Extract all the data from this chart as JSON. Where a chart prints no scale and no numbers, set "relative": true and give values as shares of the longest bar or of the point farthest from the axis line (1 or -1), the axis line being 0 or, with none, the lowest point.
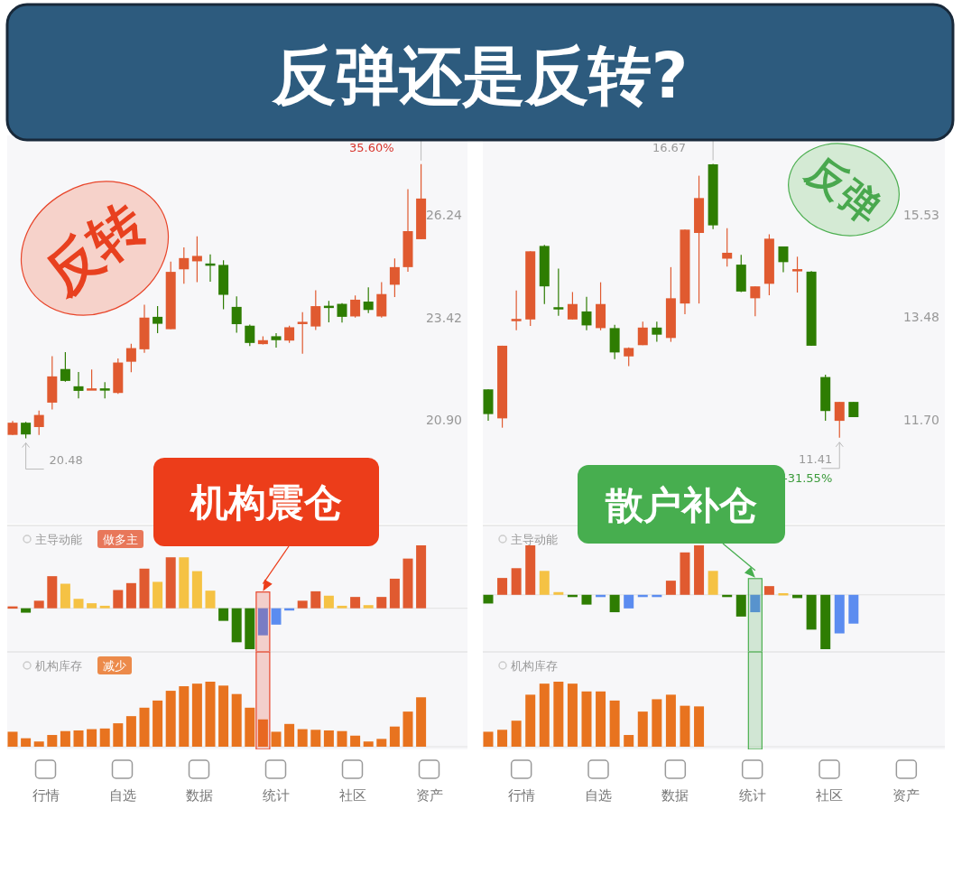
{
  "chart_data": [
    {
      "type": "other",
      "title": "反弹还是反转?"
    },
    {
      "type": "candlestick",
      "log": true,
      "ylim": [
        18.63,
        28.67
      ],
      "yticks": [
        {
          "value": 20.9,
          "label": "20.90"
        },
        {
          "value": 23.42,
          "label": "23.42"
        },
        {
          "value": 26.24,
          "label": "26.24"
        }
      ],
      "tick_labels": "y",
      "categories": [
        null,
        null,
        null,
        null,
        null,
        null,
        null,
        null,
        null,
        null,
        null,
        null,
        null,
        null,
        null,
        null,
        null,
        null,
        null,
        null,
        null,
        null,
        null,
        null,
        null,
        null,
        null,
        null,
        null,
        null,
        null,
        null
      ],
      "ohlc": [
        [
          20.56,
          20.88,
          20.56,
          20.84
        ],
        [
          20.84,
          20.86,
          20.48,
          20.57
        ],
        [
          20.74,
          21.12,
          20.56,
          21.02
        ],
        [
          21.31,
          22.44,
          21.15,
          21.94
        ],
        [
          22.12,
          22.54,
          21.81,
          21.83
        ],
        [
          21.7,
          22.05,
          21.41,
          21.59
        ],
        [
          21.63,
          22.11,
          21.62,
          21.65
        ],
        [
          21.65,
          21.8,
          21.41,
          21.62
        ],
        [
          21.54,
          22.38,
          21.52,
          22.28
        ],
        [
          22.3,
          22.75,
          22.04,
          22.64
        ],
        [
          22.61,
          23.76,
          22.52,
          23.42
        ],
        [
          23.44,
          23.72,
          23.02,
          23.26
        ],
        [
          23.12,
          24.92,
          23.12,
          24.64
        ],
        [
          24.71,
          25.32,
          24.32,
          25.02
        ],
        [
          24.93,
          25.63,
          24.36,
          25.08
        ],
        [
          24.87,
          25.12,
          24.37,
          24.84
        ],
        [
          24.83,
          24.96,
          23.64,
          24.02
        ],
        [
          23.7,
          23.98,
          23.03,
          23.25
        ],
        [
          23.21,
          23.24,
          22.69,
          22.77
        ],
        [
          22.74,
          22.94,
          22.73,
          22.84
        ],
        [
          22.94,
          23.02,
          22.65,
          22.84
        ],
        [
          22.83,
          23.21,
          22.77,
          23.17
        ],
        [
          23.26,
          23.56,
          22.5,
          23.31
        ],
        [
          23.19,
          24.14,
          23.1,
          23.72
        ],
        [
          23.73,
          23.86,
          23.3,
          23.68
        ],
        [
          23.78,
          23.8,
          23.29,
          23.44
        ],
        [
          23.45,
          24.0,
          23.42,
          23.89
        ],
        [
          23.84,
          24.22,
          23.54,
          23.62
        ],
        [
          23.45,
          24.36,
          23.42,
          24.04
        ],
        [
          24.29,
          25.01,
          23.96,
          24.77
        ],
        [
          24.77,
          27.01,
          24.64,
          25.78
        ],
        [
          25.55,
          27.77,
          25.55,
          26.73
        ]
      ],
      "colors": [
        "#e05a30",
        "#2e7d02",
        "#e05a30",
        "#e05a30",
        "#2e7d02",
        "#2e7d02",
        "#e05a30",
        "#2e7d02",
        "#e05a30",
        "#e05a30",
        "#e05a30",
        "#2e7d02",
        "#e05a30",
        "#e05a30",
        "#e05a30",
        "#2e7d02",
        "#2e7d02",
        "#2e7d02",
        "#2e7d02",
        "#e05a30",
        "#2e7d02",
        "#e05a30",
        "#e05a30",
        "#e05a30",
        "#2e7d02",
        "#2e7d02",
        "#e05a30",
        "#2e7d02",
        "#e05a30",
        "#e05a30",
        "#e05a30",
        "#e05a30"
      ],
      "annotations": [
        "反转",
        "35.60%",
        "20.48"
      ]
    },
    {
      "type": "bar",
      "relative": true,
      "title": "主导动能",
      "subtitle": "做多主",
      "tick_labels": false,
      "categories": [
        null,
        null,
        null,
        null,
        null,
        null,
        null,
        null,
        null,
        null,
        null,
        null,
        null,
        null,
        null,
        null,
        null,
        null,
        null,
        null,
        null,
        null,
        null,
        null,
        null,
        null,
        null,
        null,
        null,
        null,
        null,
        null
      ],
      "values": [
        0.03,
        -0.07,
        0.12,
        0.51,
        0.39,
        0.15,
        0.08,
        0.04,
        0.29,
        0.4,
        0.63,
        0.42,
        0.81,
        0.81,
        0.59,
        0.28,
        -0.2,
        -0.54,
        -0.65,
        -0.43,
        -0.26,
        -0.02,
        0.12,
        0.27,
        0.2,
        0.04,
        0.18,
        0.05,
        0.18,
        0.47,
        0.79,
        1
      ],
      "colors": [
        "#e05a30",
        "#2e7d02",
        "#e05a30",
        "#e05a30",
        "#f5c244",
        "#f5c244",
        "#f5c244",
        "#f5c244",
        "#e05a30",
        "#e05a30",
        "#e05a30",
        "#f5c244",
        "#e05a30",
        "#f5c244",
        "#f5c244",
        "#f5c244",
        "#2e7d02",
        "#2e7d02",
        "#2e7d02",
        "#5b8cf0",
        "#5b8cf0",
        "#5b8cf0",
        "#e05a30",
        "#e05a30",
        "#f5c244",
        "#f5c244",
        "#e05a30",
        "#f5c244",
        "#e05a30",
        "#e05a30",
        "#e05a30",
        "#e05a30"
      ],
      "annotations": [
        "机构震仓"
      ]
    },
    {
      "type": "bar",
      "relative": true,
      "title": "机构库存",
      "subtitle": "减少",
      "tick_labels": false,
      "color": "#e8731f",
      "categories": [
        null,
        null,
        null,
        null,
        null,
        null,
        null,
        null,
        null,
        null,
        null,
        null,
        null,
        null,
        null,
        null,
        null,
        null,
        null,
        null,
        null,
        null,
        null,
        null,
        null,
        null,
        null,
        null,
        null,
        null,
        null,
        null
      ],
      "values": [
        0.23,
        0.13,
        0.08,
        0.18,
        0.24,
        0.25,
        0.27,
        0.28,
        0.36,
        0.47,
        0.6,
        0.71,
        0.86,
        0.93,
        0.97,
        1,
        0.94,
        0.81,
        0.6,
        0.42,
        0.23,
        0.35,
        0.27,
        0.26,
        0.25,
        0.24,
        0.17,
        0.08,
        0.12,
        0.31,
        0.54,
        0.76
      ]
    },
    {
      "type": "other",
      "annotations": [
        "行情",
        "自选",
        "数据",
        "统计",
        "社区",
        "资产"
      ]
    },
    {
      "type": "candlestick",
      "log": true,
      "ylim": [
        10.13,
        17.34
      ],
      "yticks": [
        {
          "value": 11.7,
          "label": "11.70"
        },
        {
          "value": 13.48,
          "label": "13.48"
        },
        {
          "value": 15.53,
          "label": "15.53"
        }
      ],
      "tick_labels": "y",
      "categories": [
        null,
        null,
        null,
        null,
        null,
        null,
        null,
        null,
        null,
        null,
        null,
        null,
        null,
        null,
        null,
        null,
        null,
        null,
        null,
        null,
        null,
        null,
        null,
        null,
        null,
        null,
        null
      ],
      "ohlc": [
        [
          12.2,
          12.2,
          11.68,
          11.79
        ],
        [
          11.72,
          12.96,
          11.57,
          12.96
        ],
        [
          13.42,
          13.99,
          13.24,
          13.45
        ],
        [
          13.44,
          14.77,
          13.32,
          14.77
        ],
        [
          14.88,
          14.9,
          13.73,
          14.07
        ],
        [
          13.67,
          14.42,
          13.51,
          13.63
        ],
        [
          13.44,
          13.96,
          13.44,
          13.73
        ],
        [
          13.59,
          13.87,
          13.24,
          13.33
        ],
        [
          13.28,
          14.15,
          13.24,
          13.73
        ],
        [
          13.28,
          13.34,
          12.72,
          12.84
        ],
        [
          12.77,
          12.93,
          12.6,
          12.92
        ],
        [
          12.97,
          13.4,
          12.97,
          13.29
        ],
        [
          13.29,
          13.4,
          13.03,
          13.16
        ],
        [
          13.1,
          14.45,
          13.03,
          13.84
        ],
        [
          13.74,
          15.22,
          13.54,
          15.22
        ],
        [
          15.15,
          16.4,
          13.74,
          15.9
        ],
        [
          16.66,
          16.67,
          15.23,
          15.31
        ],
        [
          14.62,
          15.25,
          14.46,
          14.74
        ],
        [
          14.5,
          14.7,
          13.96,
          13.97
        ],
        [
          13.84,
          14.07,
          13.5,
          14.07
        ],
        [
          14.12,
          15.12,
          13.9,
          15.03
        ],
        [
          14.87,
          14.87,
          14.35,
          14.55
        ],
        [
          14.38,
          14.66,
          13.95,
          14.41
        ],
        [
          14.36,
          14.37,
          12.96,
          12.96
        ],
        [
          12.41,
          12.45,
          11.68,
          11.84
        ],
        [
          11.68,
          11.99,
          11.41,
          11.99
        ],
        [
          11.99,
          11.99,
          11.74,
          11.74
        ]
      ],
      "colors": [
        "#2e7d02",
        "#e05a30",
        "#e05a30",
        "#e05a30",
        "#2e7d02",
        "#2e7d02",
        "#e05a30",
        "#2e7d02",
        "#e05a30",
        "#2e7d02",
        "#e05a30",
        "#e05a30",
        "#2e7d02",
        "#e05a30",
        "#e05a30",
        "#e05a30",
        "#2e7d02",
        "#e05a30",
        "#2e7d02",
        "#e05a30",
        "#e05a30",
        "#2e7d02",
        "#e05a30",
        "#2e7d02",
        "#2e7d02",
        "#e05a30",
        "#2e7d02"
      ],
      "annotations": [
        "反弹",
        "16.67",
        "11.41",
        "-31.55%"
      ]
    },
    {
      "type": "bar",
      "relative": true,
      "title": "主导动能",
      "tick_labels": false,
      "categories": [
        null,
        null,
        null,
        null,
        null,
        null,
        null,
        null,
        null,
        null,
        null,
        null,
        null,
        null,
        null,
        null,
        null,
        null,
        null,
        null,
        null,
        null,
        null,
        null,
        null,
        null,
        null
      ],
      "values": [
        -0.16,
        0.31,
        0.49,
        0.91,
        0.44,
        0.05,
        -0.02,
        -0.18,
        -0.02,
        -0.32,
        -0.25,
        -0.02,
        -0.02,
        0.26,
        0.78,
        0.91,
        0.44,
        -0.02,
        -0.4,
        -0.32,
        0.16,
        0.03,
        -0.06,
        -0.64,
        -1,
        -0.71,
        -0.53
      ],
      "colors": [
        "#2e7d02",
        "#e05a30",
        "#e05a30",
        "#e05a30",
        "#f5c244",
        "#f5c244",
        "#2e7d02",
        "#2e7d02",
        "#5b8cf0",
        "#2e7d02",
        "#5b8cf0",
        "#5b8cf0",
        "#5b8cf0",
        "#e05a30",
        "#e05a30",
        "#e05a30",
        "#f5c244",
        "#2e7d02",
        "#2e7d02",
        "#5b8cf0",
        "#e05a30",
        "#f5c244",
        "#2e7d02",
        "#2e7d02",
        "#2e7d02",
        "#5b8cf0",
        "#5b8cf0"
      ],
      "annotations": [
        "散户补仓"
      ]
    },
    {
      "type": "bar",
      "relative": true,
      "title": "机构库存",
      "tick_labels": false,
      "color": "#e8731f",
      "categories": [
        null,
        null,
        null,
        null,
        null,
        null,
        null,
        null,
        null,
        null,
        null,
        null,
        null,
        null,
        null,
        null
      ],
      "values": [
        0.23,
        0.26,
        0.4,
        0.8,
        0.97,
        1,
        0.97,
        0.85,
        0.85,
        0.71,
        0.18,
        0.54,
        0.73,
        0.8,
        0.63,
        0.62
      ]
    },
    {
      "type": "other",
      "annotations": [
        "行情",
        "自选",
        "数据",
        "统计",
        "社区",
        "资产"
      ]
    }
  ]
}
